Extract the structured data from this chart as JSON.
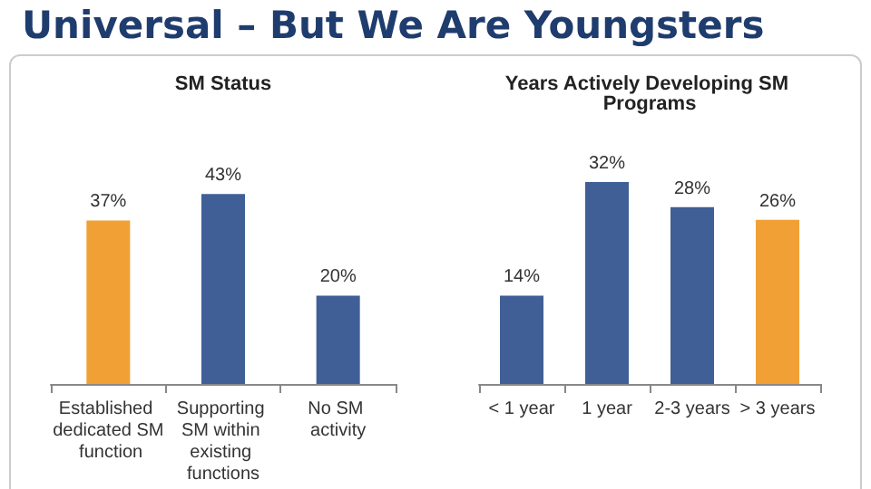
{
  "chart_data": [
    {
      "type": "bar",
      "title": "SM Status",
      "categories": [
        "Established dedicated SM function",
        "Supporting SM within existing functions",
        "No SM activity"
      ],
      "values": [
        37,
        43,
        20
      ],
      "colors": [
        "#f0a035",
        "#3f5f96",
        "#3f5f96"
      ],
      "value_labels": [
        "37%",
        "43%",
        "20%"
      ],
      "annotations": [
        "Universal – But We Are Youngsters"
      ]
    },
    {
      "type": "bar",
      "title": "Years Actively Developing SM Programs",
      "categories": [
        "< 1 year",
        "1 year",
        "2-3 years",
        "> 3 years"
      ],
      "values": [
        14,
        32,
        28,
        26
      ],
      "colors": [
        "#3f5f96",
        "#3f5f96",
        "#3f5f96",
        "#f0a035"
      ],
      "value_labels": [
        "14%",
        "32%",
        "28%",
        "26%"
      ]
    }
  ]
}
